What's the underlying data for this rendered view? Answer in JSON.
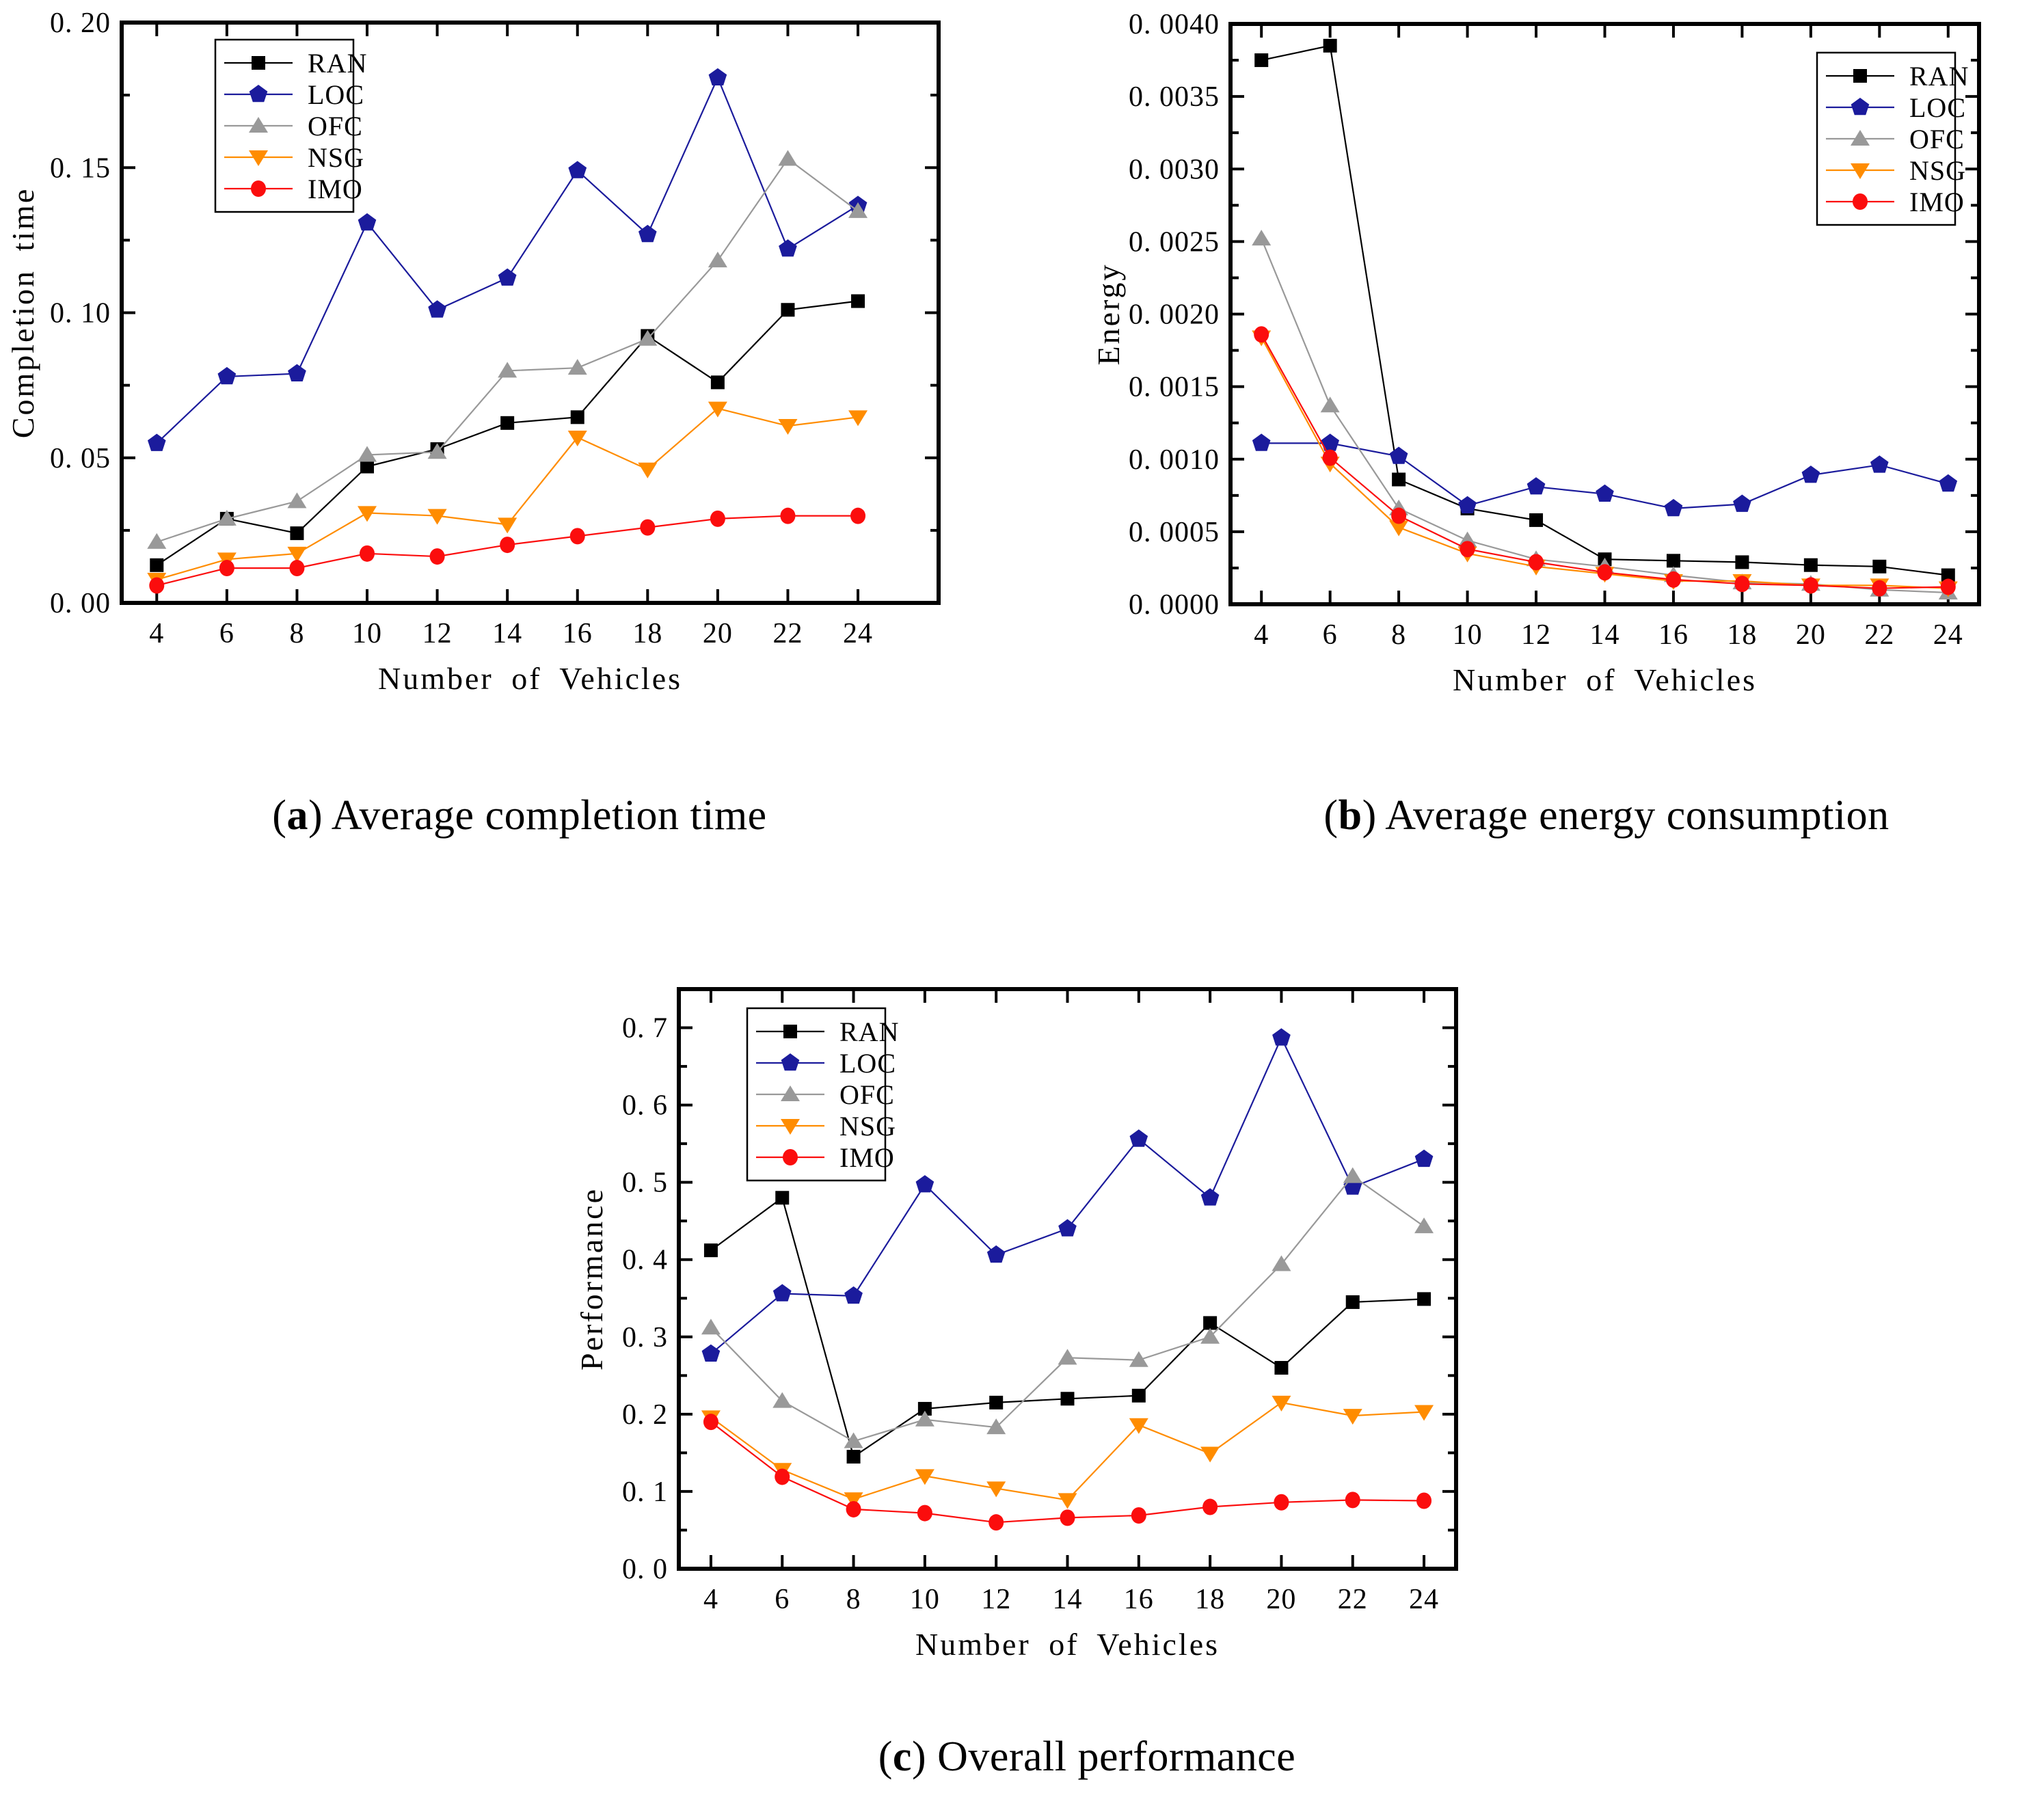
{
  "figure": {
    "background": "#ffffff",
    "captions": {
      "a": {
        "open": "(",
        "index": "a",
        "close": ")",
        "text": " Average completion time"
      },
      "b": {
        "open": "(",
        "index": "b",
        "close": ")",
        "text": " Average energy consumption"
      },
      "c": {
        "open": "(",
        "index": "c",
        "close": ")",
        "text": " Overall performance"
      }
    }
  },
  "colors": {
    "ran": "#000000",
    "loc": "#1b1b9c",
    "ofc": "#999999",
    "nsg": "#ff8c00",
    "imo": "#fb0d0d",
    "axis": "#000000",
    "legend_border": "#000000",
    "background": "#ffffff"
  },
  "chart_data": [
    {
      "id": "a",
      "type": "line",
      "title": "",
      "xlabel": "Number of Vehicles",
      "ylabel": "Completion time",
      "x": [
        4,
        6,
        8,
        10,
        12,
        14,
        16,
        18,
        20,
        22,
        24
      ],
      "xticks": [
        4,
        6,
        8,
        10,
        12,
        14,
        16,
        18,
        20,
        22,
        24
      ],
      "xlim": [
        3.0,
        26.3
      ],
      "ylim": [
        0,
        0.2
      ],
      "yticks": [
        {
          "v": 0.0,
          "label": "0. 00"
        },
        {
          "v": 0.05,
          "label": "0. 05"
        },
        {
          "v": 0.1,
          "label": "0. 10"
        },
        {
          "v": 0.15,
          "label": "0. 15"
        },
        {
          "v": 0.2,
          "label": "0. 20"
        }
      ],
      "yminor": 0.025,
      "grid": false,
      "legend_position": "top-left",
      "series": [
        {
          "name": "RAN",
          "color": "#000000",
          "marker": "square",
          "values": [
            0.013,
            0.029,
            0.024,
            0.047,
            0.053,
            0.062,
            0.064,
            0.092,
            0.076,
            0.101,
            0.104
          ]
        },
        {
          "name": "LOC",
          "color": "#1b1b9c",
          "marker": "pentagon",
          "values": [
            0.055,
            0.078,
            0.079,
            0.131,
            0.101,
            0.112,
            0.149,
            0.127,
            0.181,
            0.122,
            0.137
          ]
        },
        {
          "name": "OFC",
          "color": "#999999",
          "marker": "triangle-up",
          "values": [
            0.021,
            0.029,
            0.035,
            0.051,
            0.052,
            0.08,
            0.081,
            0.091,
            0.118,
            0.153,
            0.135
          ]
        },
        {
          "name": "NSG",
          "color": "#ff8c00",
          "marker": "triangle-down",
          "values": [
            0.008,
            0.015,
            0.017,
            0.031,
            0.03,
            0.027,
            0.057,
            0.046,
            0.067,
            0.061,
            0.064
          ]
        },
        {
          "name": "IMO",
          "color": "#fb0d0d",
          "marker": "circle",
          "values": [
            0.006,
            0.012,
            0.012,
            0.017,
            0.016,
            0.02,
            0.023,
            0.026,
            0.029,
            0.03,
            0.03
          ]
        }
      ]
    },
    {
      "id": "b",
      "type": "line",
      "title": "",
      "xlabel": "Number of Vehicles",
      "ylabel": "Energy",
      "x": [
        4,
        6,
        8,
        10,
        12,
        14,
        16,
        18,
        20,
        22,
        24
      ],
      "xticks": [
        4,
        6,
        8,
        10,
        12,
        14,
        16,
        18,
        20,
        22,
        24
      ],
      "xlim": [
        3.1,
        24.9
      ],
      "ylim": [
        0,
        0.004
      ],
      "yticks": [
        {
          "v": 0.0,
          "label": "0. 0000"
        },
        {
          "v": 0.0005,
          "label": "0. 0005"
        },
        {
          "v": 0.001,
          "label": "0. 0010"
        },
        {
          "v": 0.0015,
          "label": "0. 0015"
        },
        {
          "v": 0.002,
          "label": "0. 0020"
        },
        {
          "v": 0.0025,
          "label": "0. 0025"
        },
        {
          "v": 0.003,
          "label": "0. 0030"
        },
        {
          "v": 0.0035,
          "label": "0. 0035"
        },
        {
          "v": 0.004,
          "label": "0. 0040"
        }
      ],
      "yminor": 0.00025,
      "grid": false,
      "legend_position": "top-right",
      "series": [
        {
          "name": "RAN",
          "color": "#000000",
          "marker": "square",
          "values": [
            0.00375,
            0.00385,
            0.00086,
            0.00066,
            0.00058,
            0.00031,
            0.0003,
            0.00029,
            0.00027,
            0.00026,
            0.0002
          ]
        },
        {
          "name": "LOC",
          "color": "#1b1b9c",
          "marker": "pentagon",
          "values": [
            0.00111,
            0.00111,
            0.00102,
            0.00068,
            0.00081,
            0.00076,
            0.00066,
            0.00069,
            0.00089,
            0.00096,
            0.00083
          ]
        },
        {
          "name": "OFC",
          "color": "#999999",
          "marker": "triangle-up",
          "values": [
            0.00252,
            0.00137,
            0.00066,
            0.00044,
            0.00031,
            0.00026,
            0.0002,
            0.00015,
            0.00014,
            0.0001,
            8e-05
          ]
        },
        {
          "name": "NSG",
          "color": "#ff8c00",
          "marker": "triangle-down",
          "values": [
            0.00184,
            0.00097,
            0.00053,
            0.00035,
            0.00026,
            0.00021,
            0.00016,
            0.00016,
            0.00013,
            0.00013,
            0.00011
          ]
        },
        {
          "name": "IMO",
          "color": "#fb0d0d",
          "marker": "circle",
          "values": [
            0.00186,
            0.00101,
            0.00061,
            0.00038,
            0.00029,
            0.00022,
            0.00017,
            0.00014,
            0.00013,
            0.00011,
            0.00012
          ]
        }
      ]
    },
    {
      "id": "c",
      "type": "line",
      "title": "",
      "xlabel": "Number of Vehicles",
      "ylabel": "Performance",
      "x": [
        4,
        6,
        8,
        10,
        12,
        14,
        16,
        18,
        20,
        22,
        24
      ],
      "xticks": [
        4,
        6,
        8,
        10,
        12,
        14,
        16,
        18,
        20,
        22,
        24
      ],
      "xlim": [
        3.1,
        24.9
      ],
      "ylim": [
        0,
        0.75
      ],
      "yticks": [
        {
          "v": 0.0,
          "label": "0. 0"
        },
        {
          "v": 0.1,
          "label": "0. 1"
        },
        {
          "v": 0.2,
          "label": "0. 2"
        },
        {
          "v": 0.3,
          "label": "0. 3"
        },
        {
          "v": 0.4,
          "label": "0. 4"
        },
        {
          "v": 0.5,
          "label": "0. 5"
        },
        {
          "v": 0.6,
          "label": "0. 6"
        },
        {
          "v": 0.7,
          "label": "0. 7"
        }
      ],
      "yminor": 0.05,
      "grid": false,
      "legend_position": "top-left",
      "series": [
        {
          "name": "RAN",
          "color": "#000000",
          "marker": "square",
          "values": [
            0.412,
            0.48,
            0.145,
            0.207,
            0.215,
            0.22,
            0.224,
            0.318,
            0.26,
            0.345,
            0.349
          ]
        },
        {
          "name": "LOC",
          "color": "#1b1b9c",
          "marker": "pentagon",
          "values": [
            0.278,
            0.356,
            0.353,
            0.497,
            0.406,
            0.44,
            0.556,
            0.48,
            0.687,
            0.494,
            0.53
          ]
        },
        {
          "name": "OFC",
          "color": "#999999",
          "marker": "triangle-up",
          "values": [
            0.312,
            0.217,
            0.165,
            0.193,
            0.183,
            0.273,
            0.27,
            0.3,
            0.394,
            0.508,
            0.443
          ]
        },
        {
          "name": "NSG",
          "color": "#ff8c00",
          "marker": "triangle-down",
          "values": [
            0.196,
            0.128,
            0.09,
            0.12,
            0.104,
            0.089,
            0.186,
            0.149,
            0.215,
            0.198,
            0.203
          ]
        },
        {
          "name": "IMO",
          "color": "#fb0d0d",
          "marker": "circle",
          "values": [
            0.19,
            0.119,
            0.077,
            0.072,
            0.06,
            0.066,
            0.069,
            0.08,
            0.086,
            0.089,
            0.088
          ]
        }
      ]
    }
  ]
}
